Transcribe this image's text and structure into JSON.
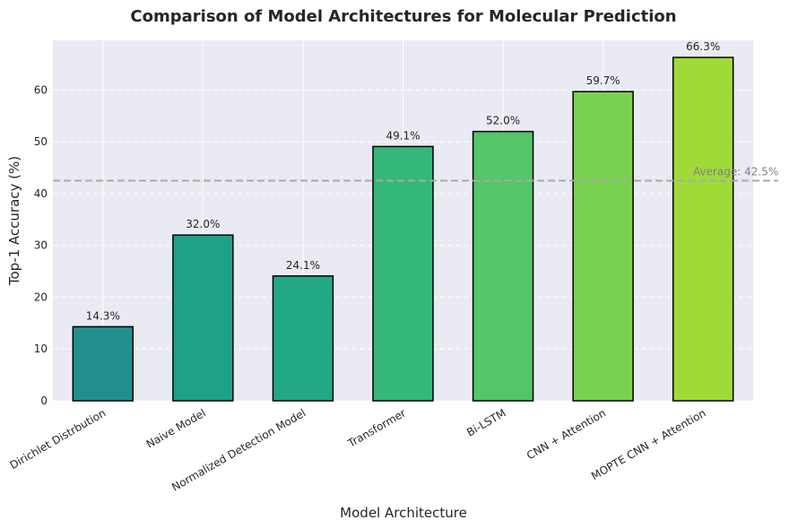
{
  "chart_data": {
    "type": "bar",
    "title": "Comparison of Model Architectures for Molecular Prediction",
    "xlabel": "Model Architecture",
    "ylabel": "Top-1 Accuracy (%)",
    "ylim": [
      0,
      69.6
    ],
    "yticks": [
      0,
      10,
      20,
      30,
      40,
      50,
      60
    ],
    "grid": true,
    "categories": [
      "Dirichlet Distrbution",
      "Naive Model",
      "Normalized Detection Model",
      "Transformer",
      "Bi-LSTM",
      "CNN + Attention",
      "MOPTE CNN + Attention"
    ],
    "values": [
      14.3,
      32.0,
      24.1,
      49.1,
      52.0,
      59.7,
      66.3
    ],
    "value_labels": [
      "14.3%",
      "32.0%",
      "24.1%",
      "49.1%",
      "52.0%",
      "59.7%",
      "66.3%"
    ],
    "bar_colors": [
      "#21908d",
      "#1fa088",
      "#22a884",
      "#35b779",
      "#54c568",
      "#7ad151",
      "#a0da39"
    ],
    "average": {
      "value": 42.5,
      "label": "Average: 42.5%",
      "color": "#a9a9a9"
    },
    "colors": {
      "plot_background": "#eaeaf2",
      "grid": "#ffffff",
      "bar_edge": "#000000"
    }
  }
}
